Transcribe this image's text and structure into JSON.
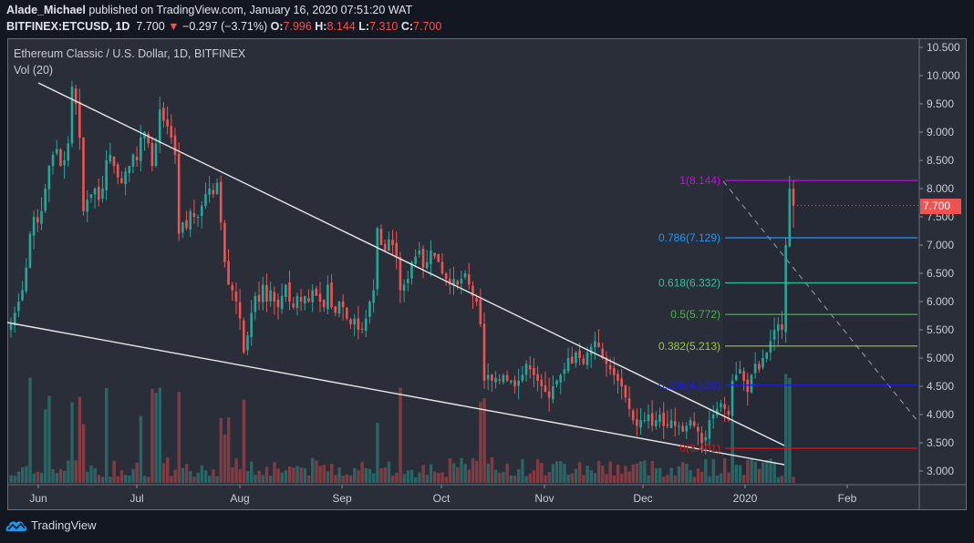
{
  "header": {
    "author": "Alade_Michael",
    "published_text": "published on TradingView.com, January 16, 2020 07:51:20 WAT",
    "symbol": "BITFINEX:ETCUSD, 1D",
    "last": "7.700",
    "change_arrow": "▼",
    "change": "−0.297 (−3.71%)",
    "o_label": "O:",
    "o": "7.996",
    "h_label": "H:",
    "h": "8.144",
    "l_label": "L:",
    "l": "7.310",
    "c_label": "C:",
    "c": "7.700"
  },
  "legend": {
    "title": "Ethereum Classic / U.S. Dollar, 1D, BITFINEX",
    "volume": "Vol (20)"
  },
  "price_tag": "7.700",
  "footer": {
    "brand": "TradingView"
  },
  "colors": {
    "up": "#26a69a",
    "down": "#ef5350",
    "vol_up": "#2a6b6a",
    "vol_down": "#8c3e43",
    "bg": "#2a2e39",
    "page_bg": "#131722"
  },
  "chart_data": {
    "type": "candlestick",
    "title": "Ethereum Classic / U.S. Dollar, 1D, BITFINEX",
    "indicator": "Vol (20)",
    "y_axis": {
      "ticks": [
        "10.500",
        "10.000",
        "9.500",
        "9.000",
        "8.500",
        "8.000",
        "7.500",
        "7.000",
        "6.500",
        "6.000",
        "5.500",
        "5.000",
        "4.500",
        "4.000",
        "3.500",
        "3.000"
      ],
      "range": [
        2.85,
        10.65
      ]
    },
    "x_axis": {
      "ticks": [
        "Jun",
        "Jul",
        "Aug",
        "Sep",
        "Oct",
        "Nov",
        "Dec",
        "2020",
        "Feb"
      ]
    },
    "fibonacci": [
      {
        "level": "1",
        "price": "8.144",
        "label": "1(8.144)",
        "color": "#d500f9"
      },
      {
        "level": "0.786",
        "price": "7.129",
        "label": "0.786(7.129)",
        "color": "#2196f3"
      },
      {
        "level": "0.618",
        "price": "6.332",
        "label": "0.618(6.332)",
        "color": "#26c6a0"
      },
      {
        "level": "0.5",
        "price": "5.772",
        "label": "0.5(5.772)",
        "color": "#4caf50"
      },
      {
        "level": "0.382",
        "price": "5.213",
        "label": "0.382(5.213)",
        "color": "#9acd32"
      },
      {
        "level": "0.236",
        "price": "4.520",
        "label": "0.236(4.520)",
        "color": "#1c1cf0"
      },
      {
        "level": "0",
        "price": "3.401",
        "label": "0(3.401)",
        "color": "#e01010"
      }
    ],
    "trendlines": [
      {
        "name": "upper-wedge-line",
        "from": [
          "~May 31",
          "9.9"
        ],
        "to": [
          "~Jan 12",
          "3.4"
        ]
      },
      {
        "name": "lower-wedge-line",
        "from": [
          "~May 22",
          "5.6"
        ],
        "to": [
          "~Jan 12",
          "3.1"
        ]
      },
      {
        "name": "projection-dashed",
        "from": [
          "~Jan 13",
          "8.14"
        ],
        "to": [
          "~Feb 28",
          "3.9"
        ]
      }
    ],
    "last_price": 7.7,
    "ohlc_last": {
      "open": 7.996,
      "high": 8.144,
      "low": 7.31,
      "close": 7.7
    },
    "candles_close_approx": [
      5.6,
      5.8,
      6.0,
      6.2,
      6.6,
      7.2,
      7.5,
      7.4,
      7.6,
      8.0,
      8.4,
      8.6,
      8.7,
      8.4,
      8.5,
      8.8,
      9.8,
      9.5,
      8.9,
      7.6,
      7.8,
      7.9,
      8.0,
      7.8,
      8.0,
      8.5,
      8.6,
      8.4,
      8.2,
      8.1,
      8.3,
      8.4,
      8.6,
      8.5,
      8.9,
      9.0,
      8.8,
      8.4,
      8.8,
      9.4,
      9.2,
      9.1,
      8.9,
      8.6,
      7.2,
      7.4,
      7.3,
      7.6,
      7.5,
      7.5,
      7.7,
      7.9,
      8.0,
      7.9,
      8.1,
      7.4,
      6.7,
      6.3,
      6.2,
      6.0,
      5.7,
      5.1,
      5.4,
      5.8,
      6.1,
      6.0,
      6.3,
      6.0,
      6.2,
      6.0,
      5.9,
      6.1,
      6.3,
      6.0,
      5.9,
      6.1,
      6.0,
      6.1,
      6.0,
      6.2,
      6.1,
      6.0,
      5.9,
      6.3,
      5.9,
      5.8,
      6.0,
      5.9,
      5.7,
      5.6,
      5.7,
      5.5,
      5.5,
      5.7,
      6.0,
      6.2,
      7.3,
      7.0,
      6.9,
      7.1,
      7.0,
      6.8,
      6.2,
      6.3,
      6.4,
      6.7,
      6.8,
      6.9,
      6.6,
      6.7,
      6.9,
      6.8,
      6.7,
      6.5,
      6.4,
      6.3,
      6.4,
      6.3,
      6.4,
      6.5,
      6.3,
      6.1,
      6.0,
      5.6,
      4.6,
      4.7,
      4.6,
      4.65,
      4.6,
      4.7,
      4.6,
      4.6,
      4.5,
      4.6,
      4.7,
      4.9,
      4.8,
      4.7,
      4.6,
      4.5,
      4.4,
      4.3,
      4.5,
      4.6,
      4.7,
      4.8,
      5.0,
      4.9,
      5.1,
      5.0,
      4.9,
      5.1,
      5.2,
      5.3,
      5.2,
      5.0,
      4.9,
      4.8,
      4.7,
      4.6,
      4.5,
      4.3,
      4.1,
      3.9,
      3.8,
      3.9,
      3.9,
      4.0,
      3.8,
      3.9,
      4.0,
      3.8,
      3.8,
      3.9,
      3.8,
      3.8,
      3.7,
      3.8,
      3.9,
      3.8,
      3.7,
      3.5,
      3.6,
      3.9,
      4.0,
      4.1,
      4.2,
      4.1,
      4.0,
      4.6,
      4.7,
      4.8,
      4.6,
      4.4,
      4.7,
      4.9,
      4.8,
      5.0,
      5.1,
      5.3,
      5.5,
      5.6,
      5.5,
      7.0,
      7.996,
      7.7
    ]
  }
}
